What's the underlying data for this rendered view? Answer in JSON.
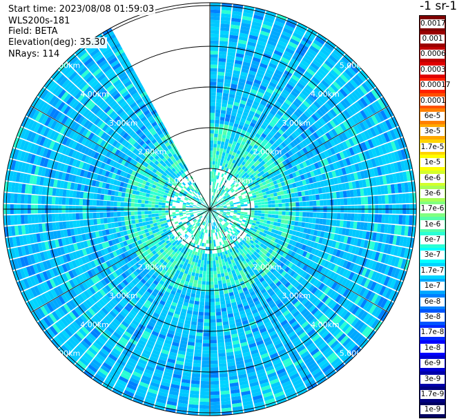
{
  "header": {
    "start_time": "Start time: 2023/08/08 01:59:03",
    "instrument": "WLS200s-181",
    "field": "Field: BETA",
    "elevation": "Elevation(deg): 35.30",
    "nrays": "NRays: 114"
  },
  "colorbar": {
    "units": "-1 sr-1",
    "labels": [
      "0.0017",
      "0.001",
      "0.0006",
      "0.0003",
      "0.00017",
      "0.0001",
      "6e-5",
      "3e-5",
      "1.7e-5",
      "1e-5",
      "6e-6",
      "3e-6",
      "1.7e-6",
      "1e-6",
      "6e-7",
      "3e-7",
      "1.7e-7",
      "1e-7",
      "6e-8",
      "3e-8",
      "1.7e-8",
      "1e-8",
      "6e-9",
      "3e-9",
      "1.7e-9",
      "1e-9"
    ],
    "colors": [
      "#7f0000",
      "#9a0000",
      "#c00000",
      "#e00000",
      "#ff2000",
      "#ff5000",
      "#ff8000",
      "#ffa800",
      "#ffd400",
      "#ffff00",
      "#d4ff2a",
      "#a8ff55",
      "#80ff80",
      "#55ffaa",
      "#2affd4",
      "#00ffff",
      "#00d4ff",
      "#00a8ff",
      "#0080ff",
      "#0055ff",
      "#0028ff",
      "#0000ff",
      "#0000d4",
      "#0000aa",
      "#000080",
      "#000060"
    ]
  },
  "chart_data": {
    "type": "heatmap",
    "title": "",
    "field": "BETA",
    "elevation_deg": 35.3,
    "n_rays": 114,
    "range_rings_km": [
      1.0,
      2.0,
      3.0,
      4.0,
      5.0
    ],
    "ring_labels": [
      "1.00km",
      "2.00km",
      "3.00km",
      "4.00km",
      "5.00km"
    ],
    "max_range_km": 5.07,
    "missing_sector_deg": [
      333,
      360
    ],
    "spoke_interval_deg": 30,
    "typical_value_range": [
      3e-08,
      1.7e-06
    ],
    "dominant_colors": [
      "#00a8ff",
      "#00c8ff",
      "#00d4ff",
      "#2affd4",
      "#55ffaa"
    ]
  }
}
